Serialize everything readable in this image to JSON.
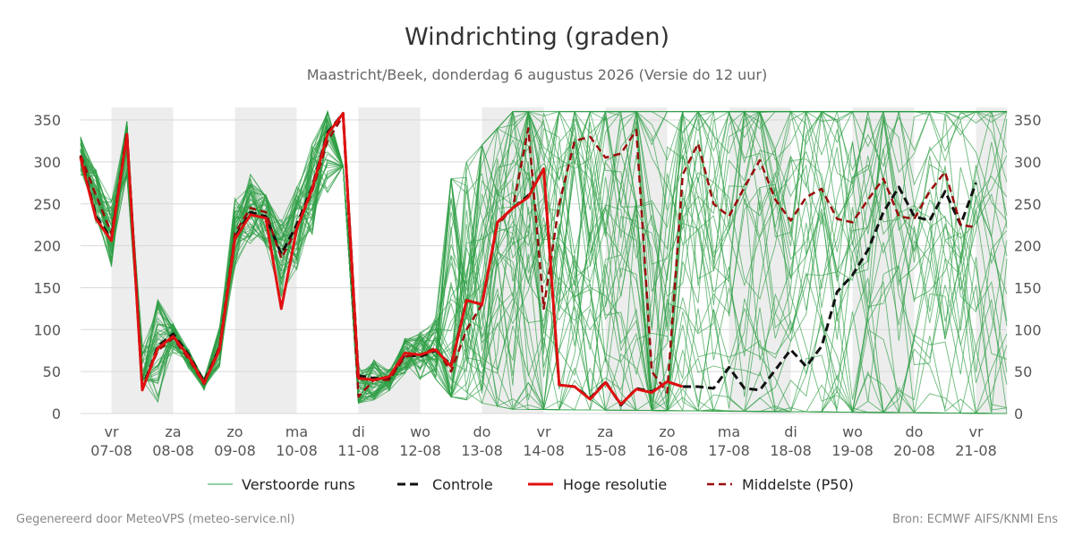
{
  "chart_data": {
    "type": "line",
    "title": "Windrichting (graden)",
    "subtitle": "Maastricht/Beek, donderdag  6 augustus 2026 (Versie do 12 uur)",
    "xlabel": "",
    "ylabel": "",
    "x_start": "2026-08-06 12:00",
    "x_range_days": [
      0,
      15
    ],
    "ylim": [
      0,
      365
    ],
    "yticks": [
      0,
      50,
      100,
      150,
      200,
      250,
      300,
      350
    ],
    "grid": true,
    "legend_position": "bottom",
    "shaded_night_days": [
      1,
      3,
      5,
      7,
      9,
      11,
      13,
      15
    ],
    "day_labels": [
      {
        "day": "vr",
        "date": "07-08"
      },
      {
        "day": "za",
        "date": "08-08"
      },
      {
        "day": "zo",
        "date": "09-08"
      },
      {
        "day": "ma",
        "date": "10-08"
      },
      {
        "day": "di",
        "date": "11-08"
      },
      {
        "day": "wo",
        "date": "12-08"
      },
      {
        "day": "do",
        "date": "13-08"
      },
      {
        "day": "vr",
        "date": "14-08"
      },
      {
        "day": "za",
        "date": "15-08"
      },
      {
        "day": "zo",
        "date": "16-08"
      },
      {
        "day": "ma",
        "date": "17-08"
      },
      {
        "day": "di",
        "date": "18-08"
      },
      {
        "day": "wo",
        "date": "19-08"
      },
      {
        "day": "do",
        "date": "20-08"
      },
      {
        "day": "vr",
        "date": "21-08"
      }
    ],
    "ensemble": {
      "name": "Verstoorde runs",
      "color": "#2e9e44",
      "members": 50,
      "spread": [
        {
          "t": 0.0,
          "lo": 180,
          "hi": 330
        },
        {
          "t": 1.25,
          "lo": 5,
          "hi": 360
        },
        {
          "t": 1.5,
          "lo": 10,
          "hi": 110
        },
        {
          "t": 2.0,
          "lo": 20,
          "hi": 60
        },
        {
          "t": 2.5,
          "lo": 80,
          "hi": 320
        },
        {
          "t": 3.0,
          "lo": 15,
          "hi": 260
        },
        {
          "t": 4.0,
          "lo": 5,
          "hi": 360
        },
        {
          "t": 5.0,
          "lo": 20,
          "hi": 100
        },
        {
          "t": 6.0,
          "lo": 20,
          "hi": 280
        },
        {
          "t": 7.0,
          "lo": 5,
          "hi": 360
        },
        {
          "t": 15.0,
          "lo": 0,
          "hi": 360
        }
      ]
    },
    "series": [
      {
        "name": "Controle",
        "color": "#111111",
        "style": "dashed",
        "x": [
          0,
          0.25,
          0.5,
          0.75,
          1.0,
          1.25,
          1.5,
          1.75,
          2.0,
          2.25,
          2.5,
          2.75,
          3.0,
          3.25,
          3.5,
          3.75,
          4.0,
          4.25,
          4.5,
          4.75,
          5.0,
          5.25,
          5.5,
          5.75,
          6.0,
          6.25,
          6.5,
          6.75,
          7.0,
          7.25,
          7.5,
          7.75,
          8.0,
          8.25,
          8.5,
          8.75,
          9.0,
          9.25,
          9.5,
          9.75,
          10.0,
          10.25,
          10.5,
          10.75,
          11.0,
          11.25,
          11.5,
          11.75,
          12.0,
          12.25,
          12.5,
          12.75,
          13.0,
          13.25,
          13.5,
          13.75,
          14.0,
          14.25,
          14.5
        ],
        "values": [
          307,
          235,
          208,
          335,
          30,
          80,
          95,
          70,
          38,
          78,
          210,
          240,
          235,
          190,
          225,
          270,
          335,
          358,
          45,
          42,
          42,
          70,
          68,
          75,
          58,
          135,
          130,
          228,
          245,
          260,
          292,
          34,
          32,
          18,
          38,
          10,
          30,
          26,
          38,
          32,
          32,
          30,
          55,
          30,
          28,
          52,
          76,
          56,
          80,
          145,
          165,
          195,
          240,
          270,
          235,
          230,
          265,
          225,
          275
        ]
      },
      {
        "name": "Hoge resolutie",
        "color": "#e01010",
        "style": "solid",
        "x": [
          0,
          0.25,
          0.5,
          0.75,
          1.0,
          1.25,
          1.5,
          1.75,
          2.0,
          2.25,
          2.5,
          2.75,
          3.0,
          3.25,
          3.5,
          3.75,
          4.0,
          4.25,
          4.5,
          4.75,
          5.0,
          5.25,
          5.5,
          5.75,
          6.0,
          6.25,
          6.5,
          6.75,
          7.0,
          7.25,
          7.5,
          7.75,
          8.0,
          8.25,
          8.5,
          8.75,
          9.0,
          9.25,
          9.5,
          9.75
        ],
        "values": [
          305,
          232,
          206,
          333,
          28,
          78,
          92,
          68,
          36,
          76,
          208,
          237,
          233,
          125,
          220,
          268,
          333,
          358,
          42,
          40,
          44,
          72,
          70,
          76,
          56,
          135,
          130,
          228,
          245,
          258,
          292,
          34,
          32,
          17,
          37,
          11,
          29,
          25,
          38,
          32
        ]
      },
      {
        "name": "Middelste (P50)",
        "color": "#9b0c0c",
        "style": "dashed",
        "x": [
          0,
          0.25,
          0.5,
          0.75,
          1.0,
          1.25,
          1.5,
          1.75,
          2.0,
          2.25,
          2.5,
          2.75,
          3.0,
          3.25,
          3.5,
          3.75,
          4.0,
          4.25,
          4.5,
          4.75,
          5.0,
          5.25,
          5.5,
          5.75,
          6.0,
          6.25,
          6.5,
          6.75,
          7.0,
          7.25,
          7.5,
          7.75,
          8.0,
          8.25,
          8.5,
          8.75,
          9.0,
          9.25,
          9.5,
          9.75,
          10.0,
          10.25,
          10.5,
          10.75,
          11.0,
          11.25,
          11.5,
          11.75,
          12.0,
          12.25,
          12.5,
          12.75,
          13.0,
          13.25,
          13.5,
          13.75,
          14.0,
          14.25,
          14.5
        ],
        "values": [
          308,
          260,
          215,
          330,
          30,
          75,
          90,
          65,
          35,
          80,
          215,
          245,
          240,
          185,
          220,
          265,
          325,
          355,
          20,
          40,
          40,
          68,
          70,
          78,
          50,
          100,
          130,
          225,
          245,
          340,
          125,
          250,
          325,
          330,
          305,
          310,
          338,
          50,
          25,
          285,
          322,
          250,
          235,
          270,
          302,
          255,
          230,
          258,
          268,
          232,
          228,
          255,
          280,
          235,
          232,
          265,
          288,
          225,
          222
        ]
      }
    ],
    "legend": [
      "Verstoorde runs",
      "Controle",
      "Hoge resolutie",
      "Middelste (P50)"
    ]
  },
  "footer": {
    "left": "Gegenereerd door MeteoVPS (meteo-service.nl)",
    "right": "Bron: ECMWF AIFS/KNMI Ens"
  }
}
